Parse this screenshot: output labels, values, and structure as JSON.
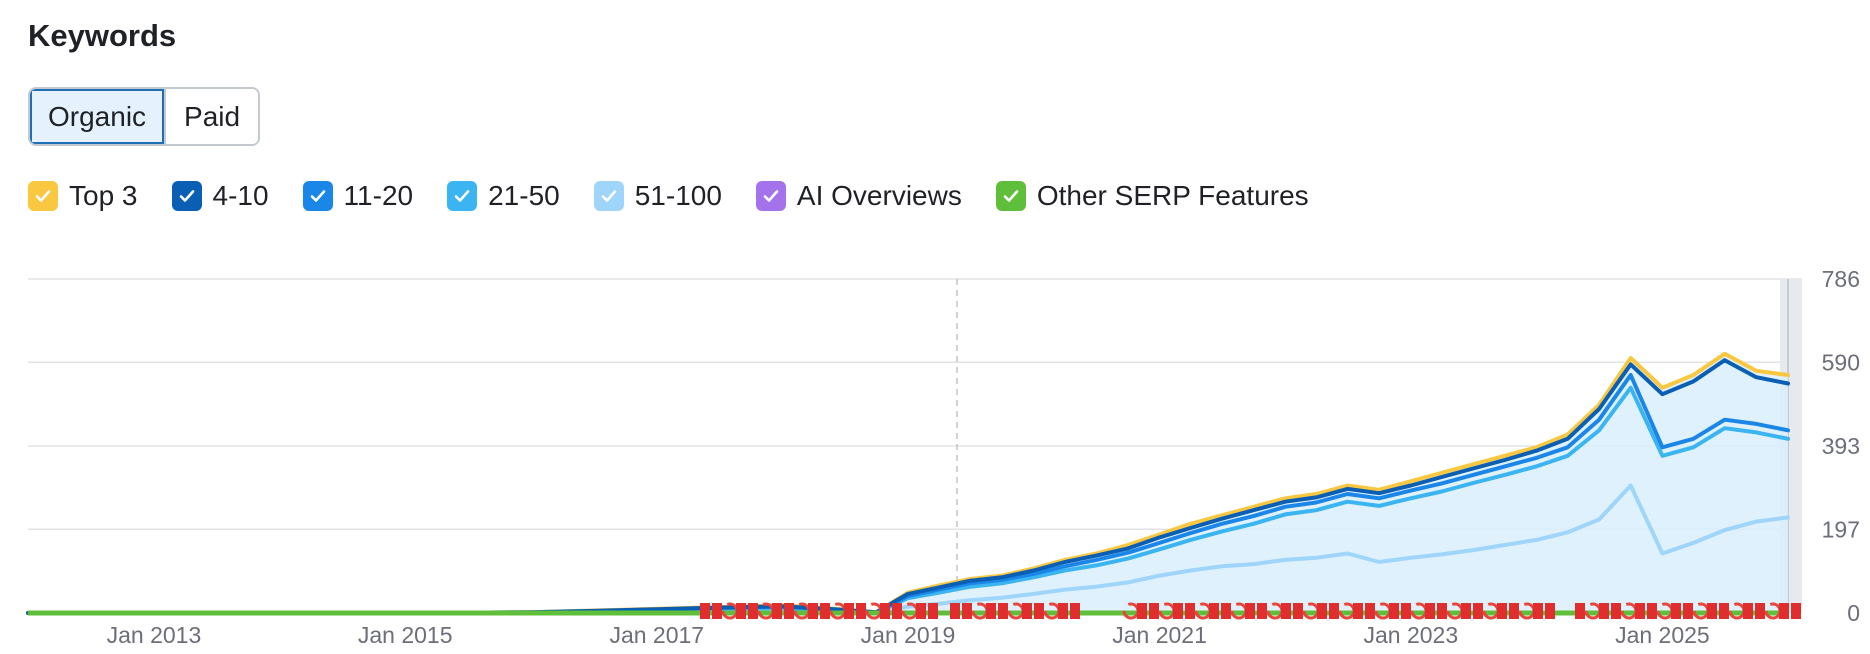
{
  "header": {
    "title": "Keywords"
  },
  "tabs": [
    {
      "label": "Organic",
      "active": true
    },
    {
      "label": "Paid",
      "active": false
    }
  ],
  "legend": [
    {
      "label": "Top 3",
      "color": "#f9c740",
      "icon": "check-icon"
    },
    {
      "label": "4-10",
      "color": "#0a5fb4",
      "icon": "check-icon"
    },
    {
      "label": "11-20",
      "color": "#1a86e8",
      "icon": "check-icon"
    },
    {
      "label": "21-50",
      "color": "#3bb4f2",
      "icon": "check-icon"
    },
    {
      "label": "51-100",
      "color": "#9fd5fb",
      "icon": "check-icon"
    },
    {
      "label": "AI Overviews",
      "color": "#a472ea",
      "icon": "check-icon"
    },
    {
      "label": "Other SERP Features",
      "color": "#5fbf3a",
      "icon": "check-icon"
    }
  ],
  "chart_data": {
    "type": "area",
    "x": [
      "2012-01",
      "2013-01",
      "2014-01",
      "2015-01",
      "2016-01",
      "2016-07",
      "2017-01",
      "2017-07",
      "2018-01",
      "2018-06",
      "2018-10",
      "2019-01",
      "2019-04",
      "2019-07",
      "2019-10",
      "2020-01",
      "2020-04",
      "2020-07",
      "2020-10",
      "2021-01",
      "2021-04",
      "2021-07",
      "2021-10",
      "2022-01",
      "2022-04",
      "2022-07",
      "2022-10",
      "2023-01",
      "2023-04",
      "2023-07",
      "2023-10",
      "2024-01",
      "2024-04",
      "2024-07",
      "2024-10",
      "2025-01",
      "2025-04",
      "2025-07",
      "2025-10",
      "2026-01"
    ],
    "series": [
      {
        "name": "Top 3",
        "values": [
          0,
          0,
          0,
          0,
          2,
          6,
          10,
          14,
          18,
          10,
          2,
          48,
          65,
          80,
          88,
          105,
          125,
          140,
          160,
          185,
          210,
          230,
          250,
          270,
          280,
          300,
          290,
          310,
          330,
          350,
          370,
          390,
          420,
          490,
          600,
          530,
          560,
          610,
          570,
          560
        ]
      },
      {
        "name": "4-10",
        "values": [
          0,
          0,
          0,
          0,
          2,
          5,
          9,
          13,
          16,
          9,
          2,
          45,
          60,
          76,
          84,
          100,
          120,
          135,
          152,
          178,
          200,
          222,
          242,
          262,
          272,
          292,
          282,
          300,
          320,
          340,
          360,
          382,
          410,
          480,
          585,
          515,
          545,
          595,
          555,
          540
        ]
      },
      {
        "name": "11-20",
        "values": [
          0,
          0,
          0,
          0,
          2,
          5,
          8,
          12,
          15,
          8,
          2,
          40,
          55,
          70,
          78,
          92,
          110,
          125,
          142,
          165,
          188,
          210,
          228,
          250,
          260,
          280,
          270,
          288,
          305,
          325,
          345,
          365,
          390,
          455,
          560,
          390,
          410,
          455,
          445,
          430
        ]
      },
      {
        "name": "21-50",
        "values": [
          0,
          0,
          0,
          0,
          1,
          4,
          7,
          10,
          12,
          6,
          1,
          35,
          48,
          62,
          70,
          84,
          100,
          112,
          128,
          150,
          172,
          192,
          210,
          232,
          242,
          262,
          252,
          270,
          286,
          306,
          325,
          345,
          370,
          430,
          530,
          370,
          390,
          435,
          425,
          410
        ]
      },
      {
        "name": "51-100",
        "values": [
          0,
          0,
          0,
          0,
          1,
          2,
          4,
          6,
          8,
          4,
          1,
          15,
          22,
          30,
          36,
          45,
          55,
          62,
          72,
          88,
          100,
          110,
          115,
          125,
          130,
          140,
          120,
          130,
          138,
          148,
          160,
          172,
          190,
          220,
          300,
          140,
          165,
          195,
          215,
          225
        ]
      }
    ],
    "x_ticks": [
      "Jan 2013",
      "Jan 2015",
      "Jan 2017",
      "Jan 2019",
      "Jan 2021",
      "Jan 2023",
      "Jan 2025"
    ],
    "y_ticks": [
      0,
      197,
      393,
      590,
      786
    ],
    "ylim": [
      0,
      786
    ],
    "grid": true
  }
}
